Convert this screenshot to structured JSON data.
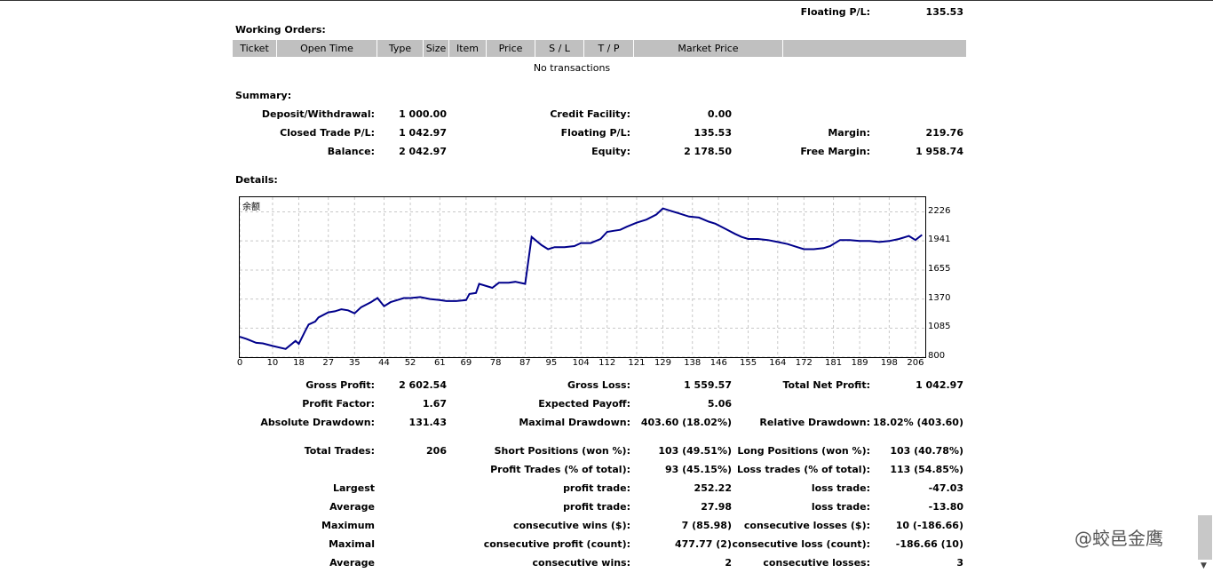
{
  "header": {
    "floating_label": "Floating P/L:",
    "floating_value": "135.53"
  },
  "working_orders": {
    "title": "Working Orders:",
    "columns": [
      "Ticket",
      "Open Time",
      "Type",
      "Size",
      "Item",
      "Price",
      "S / L",
      "T / P",
      "Market Price",
      ""
    ],
    "empty_text": "No transactions"
  },
  "summary": {
    "title": "Summary:",
    "deposit_label": "Deposit/Withdrawal:",
    "deposit_value": "1 000.00",
    "credit_label": "Credit Facility:",
    "credit_value": "0.00",
    "closed_label": "Closed Trade P/L:",
    "closed_value": "1 042.97",
    "floating_label": "Floating P/L:",
    "floating_value": "135.53",
    "margin_label": "Margin:",
    "margin_value": "219.76",
    "balance_label": "Balance:",
    "balance_value": "2 042.97",
    "equity_label": "Equity:",
    "equity_value": "2 178.50",
    "free_margin_label": "Free Margin:",
    "free_margin_value": "1 958.74"
  },
  "details": {
    "title": "Details:"
  },
  "chart_data": {
    "type": "line",
    "title": "",
    "legend_label": "余额",
    "xlabel": "",
    "ylabel": "",
    "x_ticks": [
      "0",
      "10",
      "18",
      "27",
      "35",
      "44",
      "52",
      "61",
      "69",
      "78",
      "87",
      "95",
      "104",
      "112",
      "121",
      "129",
      "138",
      "146",
      "155",
      "164",
      "172",
      "181",
      "189",
      "198",
      "206"
    ],
    "y_ticks": [
      "2226",
      "1941",
      "1655",
      "1370",
      "1085",
      "800"
    ],
    "ylim": [
      800,
      2370
    ],
    "xlim": [
      0,
      209
    ],
    "grid": true,
    "line_color": "#00008b",
    "series": [
      {
        "x": [
          0,
          2,
          5,
          7,
          10,
          14,
          17,
          18,
          20,
          21,
          23,
          24,
          27,
          29,
          31,
          33,
          35,
          37,
          40,
          42,
          44,
          46,
          48,
          50,
          52,
          55,
          58,
          61,
          63,
          66,
          69,
          70,
          72,
          73,
          77,
          79,
          82,
          84,
          87,
          89,
          92,
          94,
          96,
          99,
          102,
          104,
          107,
          110,
          112,
          114,
          116,
          118,
          121,
          124,
          127,
          129,
          131,
          134,
          137,
          140,
          143,
          145,
          148,
          151,
          153,
          155,
          158,
          161,
          164,
          167,
          170,
          172,
          175,
          178,
          180,
          181,
          183,
          186,
          189,
          192,
          195,
          198,
          201,
          204,
          206,
          208
        ],
        "y": [
          1000,
          980,
          940,
          935,
          910,
          880,
          960,
          930,
          1060,
          1120,
          1150,
          1190,
          1240,
          1250,
          1270,
          1260,
          1230,
          1290,
          1340,
          1380,
          1300,
          1340,
          1360,
          1380,
          1380,
          1390,
          1370,
          1360,
          1350,
          1350,
          1360,
          1420,
          1430,
          1520,
          1480,
          1530,
          1530,
          1540,
          1520,
          1980,
          1900,
          1860,
          1880,
          1880,
          1890,
          1920,
          1920,
          1960,
          2030,
          2040,
          2050,
          2080,
          2120,
          2150,
          2200,
          2260,
          2240,
          2210,
          2180,
          2170,
          2130,
          2110,
          2060,
          2010,
          1980,
          1960,
          1960,
          1950,
          1930,
          1910,
          1880,
          1860,
          1860,
          1870,
          1890,
          1910,
          1950,
          1950,
          1940,
          1940,
          1930,
          1940,
          1960,
          1990,
          1950,
          2000
        ]
      }
    ]
  },
  "stats": {
    "gross_profit_label": "Gross Profit:",
    "gross_profit_value": "2 602.54",
    "gross_loss_label": "Gross Loss:",
    "gross_loss_value": "1 559.57",
    "total_net_label": "Total Net Profit:",
    "total_net_value": "1 042.97",
    "profit_factor_label": "Profit Factor:",
    "profit_factor_value": "1.67",
    "expected_payoff_label": "Expected Payoff:",
    "expected_payoff_value": "5.06",
    "abs_dd_label": "Absolute Drawdown:",
    "abs_dd_value": "131.43",
    "max_dd_label": "Maximal Drawdown:",
    "max_dd_value": "403.60 (18.02%)",
    "rel_dd_label": "Relative Drawdown:",
    "rel_dd_value": "18.02% (403.60)",
    "total_trades_label": "Total Trades:",
    "total_trades_value": "206",
    "short_label": "Short Positions (won %):",
    "short_value": "103 (49.51%)",
    "long_label": "Long Positions (won %):",
    "long_value": "103 (40.78%)",
    "profit_trades_label": "Profit Trades (% of total):",
    "profit_trades_value": "93 (45.15%)",
    "loss_trades_label": "Loss trades (% of total):",
    "loss_trades_value": "113 (54.85%)",
    "largest_label": "Largest",
    "largest_profit_label": "profit trade:",
    "largest_profit_value": "252.22",
    "largest_loss_label": "loss trade:",
    "largest_loss_value": "-47.03",
    "average_label": "Average",
    "average_profit_label": "profit trade:",
    "average_profit_value": "27.98",
    "average_loss_label": "loss trade:",
    "average_loss_value": "-13.80",
    "maximum_label": "Maximum",
    "max_wins_label": "consecutive wins ($):",
    "max_wins_value": "7 (85.98)",
    "max_losses_label": "consecutive losses ($):",
    "max_losses_value": "10 (-186.66)",
    "maximal_label": "Maximal",
    "maximal_profit_label": "consecutive profit (count):",
    "maximal_profit_value": "477.77 (2)",
    "maximal_loss_label": "consecutive loss (count):",
    "maximal_loss_value": "-186.66 (10)",
    "avg2_label": "Average",
    "avg_wins_label": "consecutive wins:",
    "avg_wins_value": "2",
    "avg_losses_label": "consecutive losses:",
    "avg_losses_value": "3"
  },
  "watermark": {
    "text": "@蛟邑金鹰"
  }
}
